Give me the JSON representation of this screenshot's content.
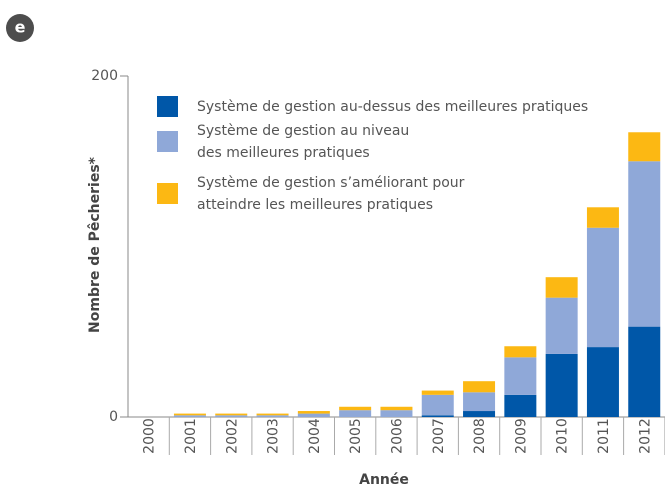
{
  "panel_label": "e",
  "chart_data": {
    "type": "stacked_bar",
    "x_label": "Année",
    "y_label": "Nombre de Pêcheries*",
    "categories": [
      "2000",
      "2001",
      "2002",
      "2003",
      "2004",
      "2005",
      "2006",
      "2007",
      "2008",
      "2009",
      "2010",
      "2011",
      "2012"
    ],
    "series": [
      {
        "name": "Système de gestion au-dessus des meilleures pratiques",
        "color": "#0057a8",
        "values": [
          0,
          0,
          0,
          0,
          0,
          0,
          0,
          1,
          3.5,
          13,
          37,
          41,
          53
        ]
      },
      {
        "name": "Système de gestion au niveau\ndes meilleures pratiques",
        "color": "#8fa8d8",
        "values": [
          0,
          1,
          1,
          1,
          2,
          4,
          4,
          12,
          11,
          22,
          33,
          70,
          97
        ]
      },
      {
        "name": "Système de gestion s’améliorant pour\natteindre les meilleures pratiques",
        "color": "#fcb813",
        "values": [
          0,
          1,
          1,
          1,
          1.5,
          2,
          2,
          2.5,
          6.5,
          6.5,
          12,
          12,
          17
        ]
      }
    ],
    "ylim": [
      0,
      200
    ],
    "yticks": [
      0,
      200
    ]
  }
}
